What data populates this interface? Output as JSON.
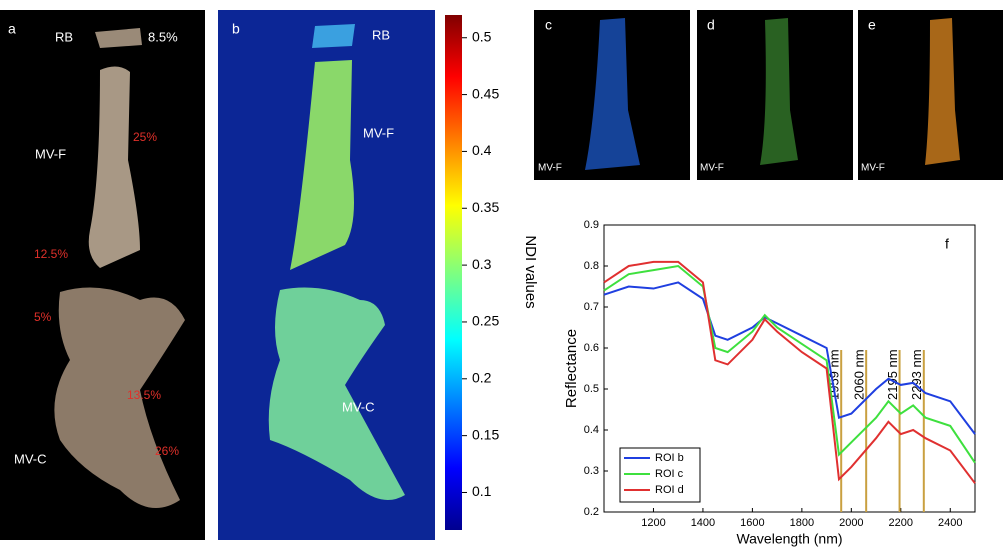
{
  "panel_a": {
    "label": "a",
    "texts": [
      "RB",
      "8.5%",
      "MV-F",
      "25%",
      "12.5%",
      "5%",
      "13.5%",
      "MV-C",
      "26%"
    ]
  },
  "panel_b": {
    "label": "b",
    "texts": [
      "RB",
      "MV-F",
      "MV-C"
    ]
  },
  "colorbar": {
    "label": "NDI values",
    "lim": [
      0.067,
      0.52
    ],
    "ticks": [
      0.1,
      0.15,
      0.2,
      0.25,
      0.3,
      0.35,
      0.4,
      0.45,
      0.5
    ]
  },
  "panel_c": {
    "label": "c",
    "text": "MV-F"
  },
  "panel_d": {
    "label": "d",
    "text": "MV-F"
  },
  "panel_e": {
    "label": "e",
    "text": "MV-F"
  },
  "chart_data": {
    "type": "line",
    "panel_label": "f",
    "x_label": "Wavelength (nm)",
    "y_label": "Reflectance",
    "x": [
      1000,
      1100,
      1200,
      1300,
      1400,
      1450,
      1500,
      1600,
      1650,
      1700,
      1800,
      1900,
      1950,
      2000,
      2100,
      2150,
      2200,
      2250,
      2300,
      2400,
      2500
    ],
    "series": [
      {
        "name": "ROI b",
        "color": "#1f3fe0",
        "values": [
          0.73,
          0.75,
          0.745,
          0.76,
          0.72,
          0.63,
          0.62,
          0.65,
          0.675,
          0.66,
          0.63,
          0.6,
          0.43,
          0.44,
          0.5,
          0.525,
          0.51,
          0.515,
          0.49,
          0.47,
          0.39
        ]
      },
      {
        "name": "ROI c",
        "color": "#3ee03e",
        "values": [
          0.74,
          0.78,
          0.79,
          0.8,
          0.75,
          0.6,
          0.59,
          0.64,
          0.68,
          0.65,
          0.61,
          0.57,
          0.34,
          0.37,
          0.43,
          0.47,
          0.44,
          0.46,
          0.43,
          0.41,
          0.32
        ]
      },
      {
        "name": "ROI d",
        "color": "#e03030",
        "values": [
          0.76,
          0.8,
          0.81,
          0.81,
          0.76,
          0.57,
          0.56,
          0.62,
          0.67,
          0.64,
          0.59,
          0.55,
          0.28,
          0.31,
          0.38,
          0.42,
          0.39,
          0.4,
          0.38,
          0.35,
          0.27
        ]
      }
    ],
    "markers": [
      {
        "value": 1959,
        "label": "1959 nm"
      },
      {
        "value": 2060,
        "label": "2060 nm"
      },
      {
        "value": 2195,
        "label": "2195 nm"
      },
      {
        "value": 2293,
        "label": "2293 nm"
      }
    ],
    "marker_color": "#c9a040",
    "xlim": [
      1000,
      2500
    ],
    "ylim": [
      0.2,
      0.9
    ],
    "xticks": [
      1200,
      1400,
      1600,
      1800,
      2000,
      2200,
      2400
    ],
    "yticks": [
      0.2,
      0.3,
      0.4,
      0.5,
      0.6,
      0.7,
      0.8,
      0.9
    ],
    "legend": "lower left"
  }
}
